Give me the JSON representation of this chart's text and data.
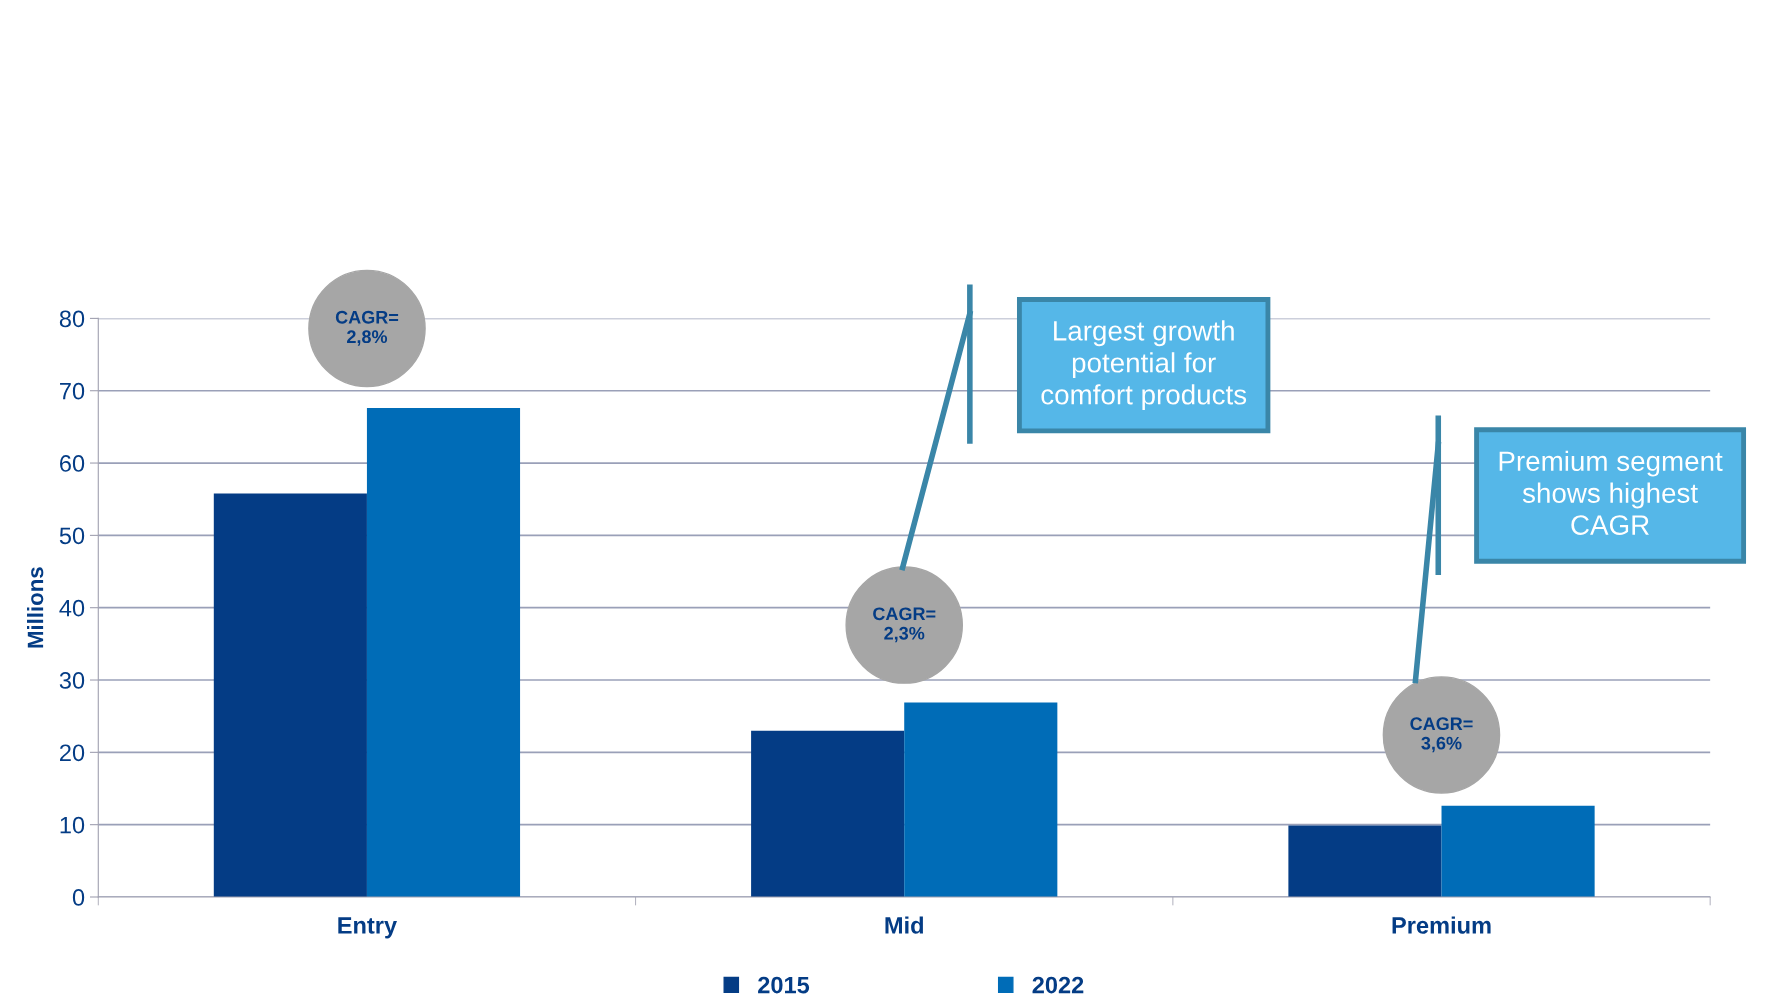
{
  "chart_data": {
    "type": "bar",
    "ylabel": "Millions",
    "categories": [
      "Entry",
      "Mid",
      "Premium"
    ],
    "series": [
      {
        "name": "2015",
        "color": "#043c85",
        "values": [
          55.8,
          23.0,
          9.9
        ]
      },
      {
        "name": "2022",
        "color": "#006cb7",
        "values": [
          67.6,
          26.9,
          12.6
        ]
      }
    ],
    "ylim": [
      0,
      80
    ],
    "yticks": [
      0,
      10,
      20,
      30,
      40,
      50,
      60,
      70,
      80
    ],
    "grid": "y",
    "legend": "bottom",
    "annotations": [
      "CAGR=\n2,8%",
      "CAGR=\n2,3%",
      "CAGR=\n3,6%",
      "Largest growth\npotential for\ncomfort products",
      "Premium segment\nshows highest\nCAGR"
    ]
  }
}
